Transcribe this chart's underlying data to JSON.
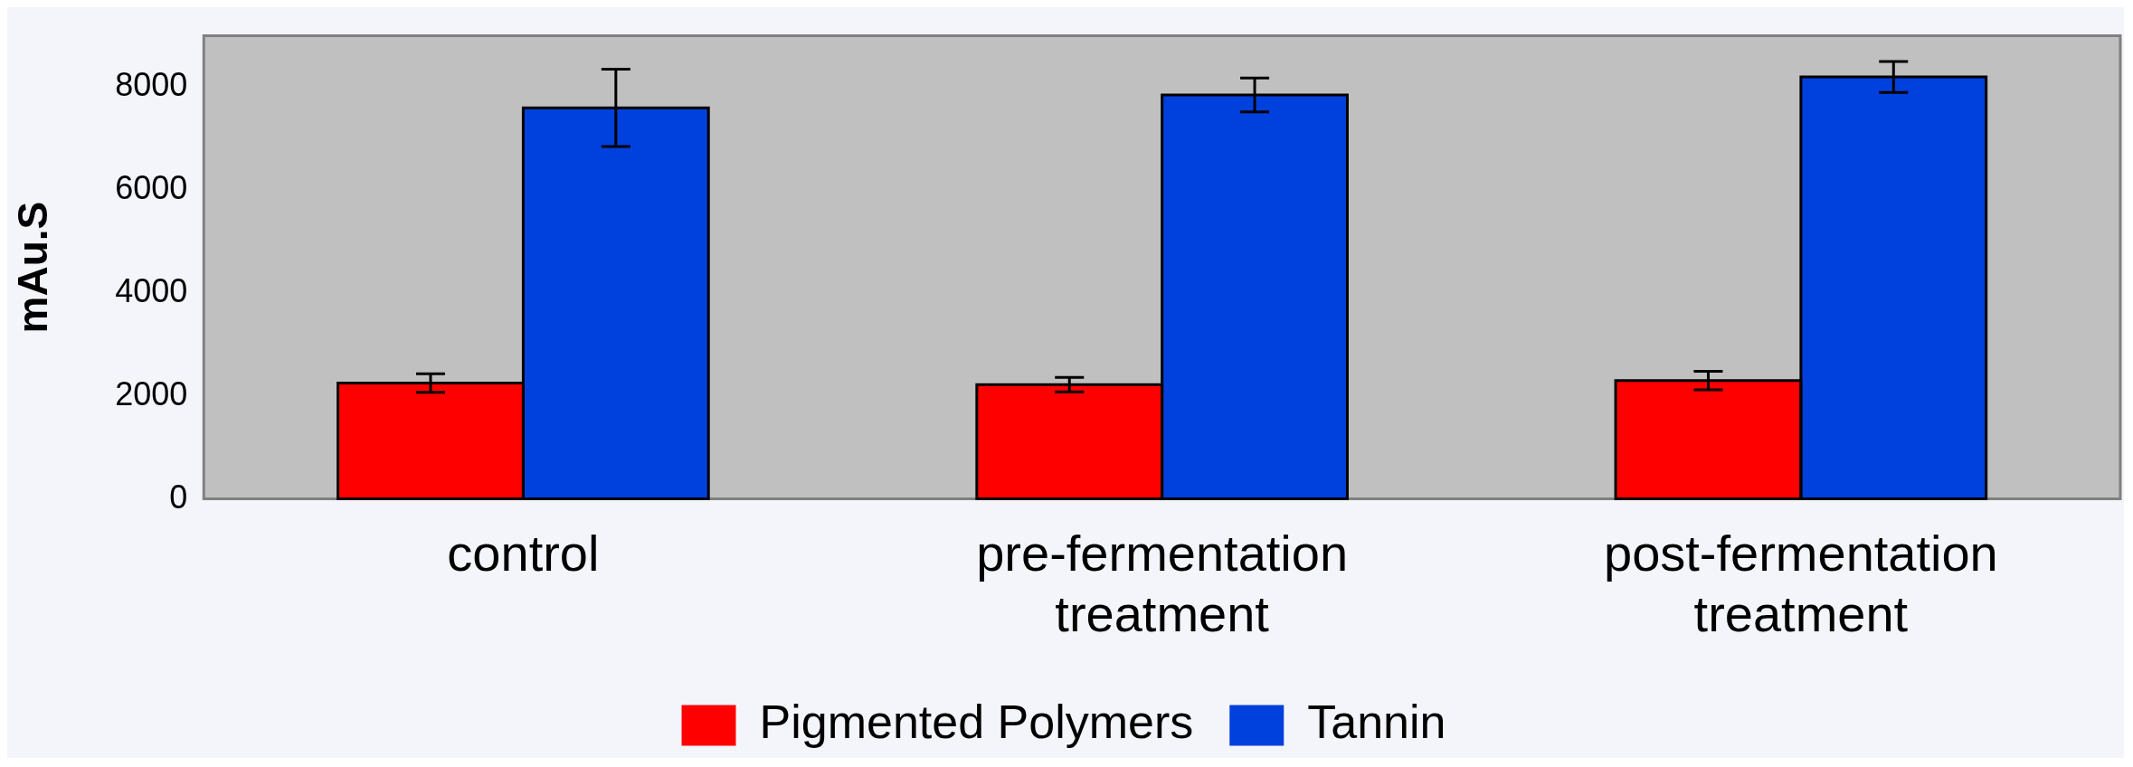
{
  "chart_data": {
    "type": "bar",
    "ylabel": "mAu.S",
    "categories": [
      "control",
      "pre-fermentation treatment",
      "post-fermentation treatment"
    ],
    "series": [
      {
        "name": "Pigmented Polymers",
        "color": "#ff0000",
        "values": [
          2250,
          2220,
          2300
        ],
        "errors": [
          180,
          140,
          180
        ]
      },
      {
        "name": "Tannin",
        "color": "#0040dd",
        "values": [
          7600,
          7850,
          8200
        ],
        "errors": [
          750,
          330,
          300
        ]
      }
    ],
    "ylim": [
      0,
      9000
    ],
    "yticks": [
      0,
      2000,
      4000,
      6000,
      8000
    ],
    "grid": false,
    "legend": "bottom"
  }
}
